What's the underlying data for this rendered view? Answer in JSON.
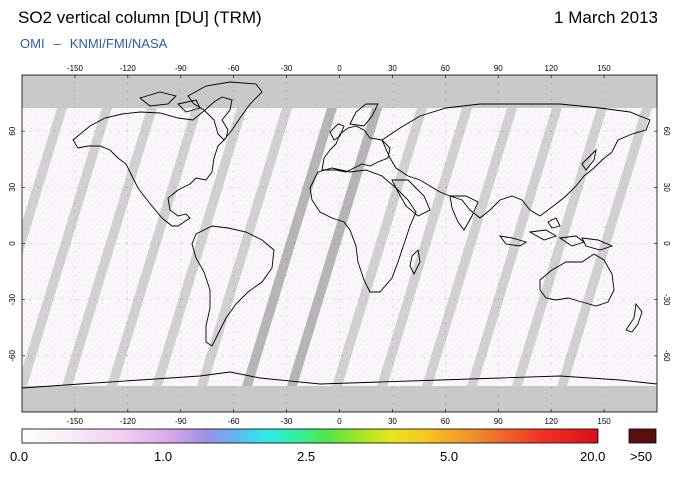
{
  "header": {
    "title": "SO2 vertical column [DU] (TRM)",
    "date": "1 March 2013",
    "instrument": "OMI",
    "separator": "–",
    "institutions": "KNMI/FMI/NASA"
  },
  "map": {
    "projection": "equirectangular",
    "lon_range": [
      -180,
      180
    ],
    "lat_range": [
      -90,
      90
    ],
    "lon_ticks": [
      "-150",
      "-120",
      "-90",
      "-60",
      "-30",
      "0",
      "30",
      "60",
      "90",
      "120",
      "150"
    ],
    "lat_ticks": [
      "60",
      "30",
      "0",
      "-30",
      "-60"
    ],
    "colors": {
      "background": "#fbf6fb",
      "polar_no_data": "#c8c8c8",
      "swath_gap": "#c9c9c9",
      "swath_gap_dark": "#a9a9a9",
      "coast": "#000000"
    }
  },
  "colorbar": {
    "labels": [
      "0.0",
      "1.0",
      "2.5",
      "5.0",
      "20.0",
      ">50"
    ],
    "stops": [
      {
        "v": 0.0,
        "color": "#ffffff"
      },
      {
        "v": 0.08,
        "color": "#f8eef8"
      },
      {
        "v": 0.18,
        "color": "#f0cdf0"
      },
      {
        "v": 0.26,
        "color": "#d7a6ea"
      },
      {
        "v": 0.32,
        "color": "#9d8fe6"
      },
      {
        "v": 0.37,
        "color": "#66b2f2"
      },
      {
        "v": 0.42,
        "color": "#2fe8f0"
      },
      {
        "v": 0.47,
        "color": "#30f0a8"
      },
      {
        "v": 0.53,
        "color": "#52e64a"
      },
      {
        "v": 0.58,
        "color": "#98e622"
      },
      {
        "v": 0.64,
        "color": "#e6e620"
      },
      {
        "v": 0.7,
        "color": "#f6c81f"
      },
      {
        "v": 0.79,
        "color": "#f08a2a"
      },
      {
        "v": 0.9,
        "color": "#f03424"
      },
      {
        "v": 1.0,
        "color": "#dc0e18"
      }
    ],
    "overflow_color": "#5a0f0f"
  }
}
